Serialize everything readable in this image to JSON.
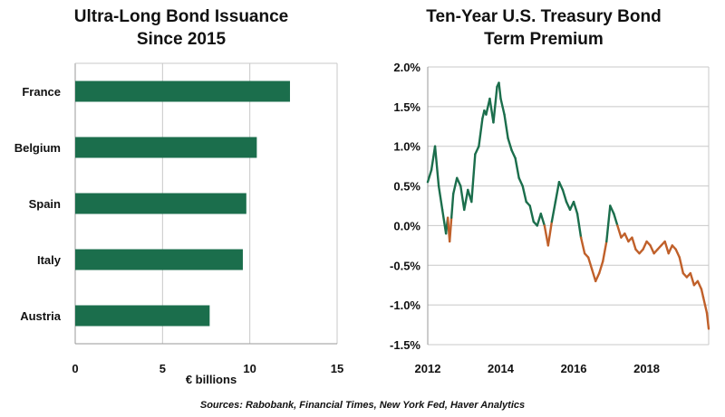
{
  "chart_data": [
    {
      "type": "bar",
      "orientation": "horizontal",
      "title": "Ultra-Long Bond Issuance",
      "title_line2": "Since 2015",
      "categories": [
        "France",
        "Belgium",
        "Spain",
        "Italy",
        "Austria"
      ],
      "values": [
        12.3,
        10.4,
        9.8,
        9.6,
        7.7
      ],
      "xlabel": "€ billions",
      "ylabel": "",
      "xlim": [
        0,
        15
      ],
      "xticks": [
        "0",
        "5",
        "10",
        "15"
      ],
      "grid": true,
      "colors": {
        "bar": "#1b6e4c",
        "grid": "#c8c8c8"
      }
    },
    {
      "type": "line",
      "title": "Ten-Year U.S. Treasury Bond",
      "title_line2": "Term Premium",
      "xlabel": "",
      "ylabel": "",
      "xlim": [
        2012,
        2019.7
      ],
      "ylim": [
        -1.5,
        2.0
      ],
      "xticks": [
        "2012",
        "2014",
        "2016",
        "2018"
      ],
      "yticks": [
        "2.0%",
        "1.5%",
        "1.0%",
        "0.5%",
        "0.0%",
        "-0.5%",
        "-1.0%",
        "-1.5%"
      ],
      "grid": true,
      "colors": {
        "positive": "#1b6e4c",
        "negative": "#c0602a",
        "grid": "#c8c8c8"
      },
      "series": [
        {
          "x": [
            2012.0,
            2012.1,
            2012.2,
            2012.3,
            2012.4,
            2012.5,
            2012.55,
            2012.6,
            2012.65,
            2012.7,
            2012.8,
            2012.9,
            2013.0,
            2013.1,
            2013.2,
            2013.3,
            2013.4,
            2013.5,
            2013.55,
            2013.6,
            2013.7,
            2013.8,
            2013.9,
            2013.95,
            2014.0,
            2014.1,
            2014.2,
            2014.3,
            2014.4,
            2014.5,
            2014.6,
            2014.7,
            2014.8,
            2014.9,
            2015.0,
            2015.1,
            2015.2,
            2015.3,
            2015.4,
            2015.5,
            2015.6,
            2015.7,
            2015.8,
            2015.9,
            2016.0,
            2016.1,
            2016.2,
            2016.3,
            2016.4,
            2016.5,
            2016.6,
            2016.7,
            2016.8,
            2016.9,
            2017.0,
            2017.1,
            2017.2,
            2017.3,
            2017.4,
            2017.5,
            2017.6,
            2017.7,
            2017.8,
            2017.9,
            2018.0,
            2018.1,
            2018.2,
            2018.3,
            2018.4,
            2018.5,
            2018.6,
            2018.7,
            2018.8,
            2018.9,
            2019.0,
            2019.1,
            2019.2,
            2019.3,
            2019.4,
            2019.5,
            2019.55,
            2019.6,
            2019.65,
            2019.7
          ],
          "values": [
            0.55,
            0.7,
            1.0,
            0.5,
            0.2,
            -0.1,
            0.1,
            -0.2,
            0.1,
            0.4,
            0.6,
            0.5,
            0.2,
            0.45,
            0.3,
            0.9,
            1.0,
            1.35,
            1.45,
            1.4,
            1.6,
            1.3,
            1.75,
            1.8,
            1.6,
            1.4,
            1.1,
            0.95,
            0.85,
            0.6,
            0.5,
            0.3,
            0.25,
            0.05,
            0.0,
            0.15,
            0.0,
            -0.25,
            0.05,
            0.3,
            0.55,
            0.45,
            0.3,
            0.2,
            0.3,
            0.15,
            -0.15,
            -0.35,
            -0.4,
            -0.55,
            -0.7,
            -0.6,
            -0.45,
            -0.2,
            0.25,
            0.15,
            0.0,
            -0.15,
            -0.1,
            -0.2,
            -0.15,
            -0.3,
            -0.35,
            -0.3,
            -0.2,
            -0.25,
            -0.35,
            -0.3,
            -0.25,
            -0.2,
            -0.35,
            -0.25,
            -0.3,
            -0.4,
            -0.6,
            -0.65,
            -0.6,
            -0.75,
            -0.7,
            -0.8,
            -0.9,
            -1.0,
            -1.1,
            -1.3
          ]
        }
      ]
    }
  ],
  "footer": {
    "sources": "Sources: Rabobank, Financial Times, New York Fed, Haver Analytics"
  }
}
